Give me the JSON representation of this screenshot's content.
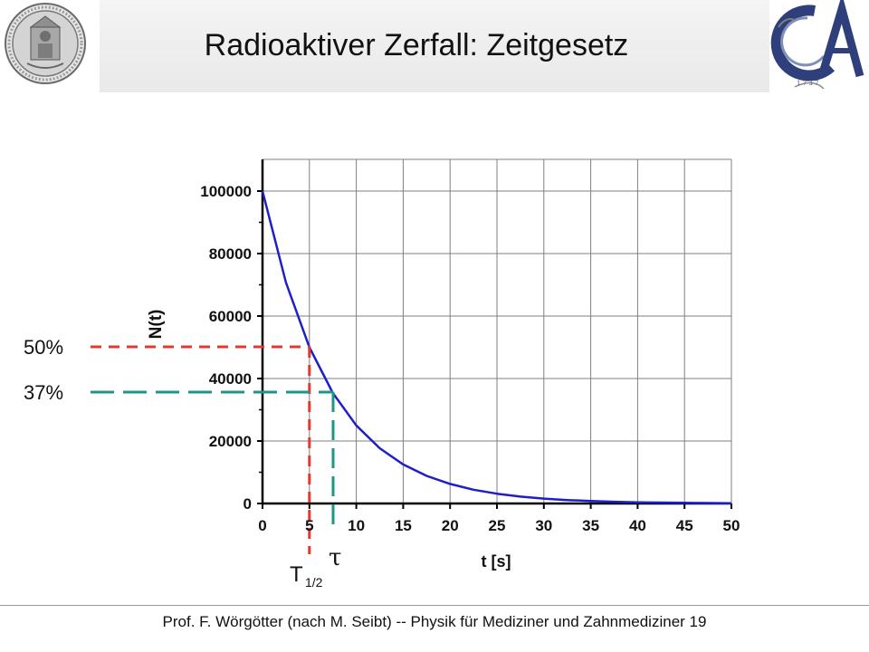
{
  "slide": {
    "title": "Radioaktiver Zerfall: Zeitgesetz",
    "footer": "Prof. F. Wörgötter (nach M. Seibt) -- Physik für Mediziner und Zahnmediziner  19"
  },
  "colors": {
    "curve": "#1f1fc8",
    "half_life_marker": "#e03a2f",
    "tau_marker": "#1f9588",
    "grid": "#7f7f7f",
    "text": "#111111"
  },
  "annotations": {
    "half_label": "50%",
    "tau_pct_label": "37%",
    "t_half_base": "T",
    "t_half_sub": "1/2",
    "tau_label": "τ"
  },
  "chart_data": {
    "type": "line",
    "title": "",
    "xlabel": "t [s]",
    "ylabel": "N(t)",
    "xlim": [
      0,
      50
    ],
    "ylim": [
      0,
      110000
    ],
    "x_ticks": [
      0,
      5,
      10,
      15,
      20,
      25,
      30,
      35,
      40,
      45,
      50
    ],
    "y_ticks": [
      0,
      20000,
      40000,
      60000,
      80000,
      100000
    ],
    "grid": true,
    "legend": "none",
    "series": [
      {
        "x": [
          0,
          2.5,
          5,
          7.5,
          10,
          12.5,
          15,
          17.5,
          20,
          22.5,
          25,
          27.5,
          30,
          32.5,
          35,
          37.5,
          40,
          42.5,
          45,
          47.5,
          50
        ],
        "y": [
          100000,
          70711,
          50000,
          35355,
          25000,
          17678,
          12500,
          8839,
          6250,
          4419,
          3125,
          2210,
          1563,
          1105,
          781,
          552,
          391,
          276,
          195,
          138,
          98
        ]
      }
    ],
    "markers": [
      {
        "label": "T1/2",
        "x": 5,
        "y": 50000,
        "percent": 50
      },
      {
        "label": "τ",
        "x": 7.2,
        "y": 36000,
        "percent": 37
      }
    ]
  }
}
